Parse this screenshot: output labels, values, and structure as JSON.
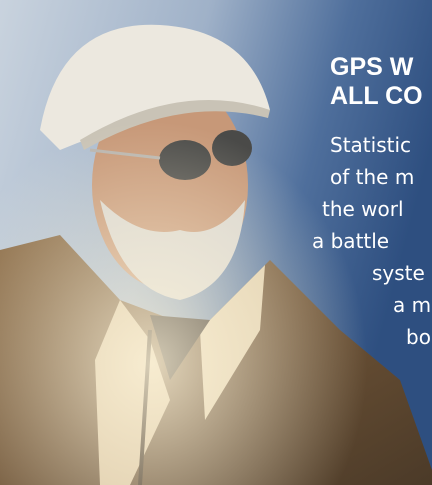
{
  "headline": {
    "lines": [
      "GPS W",
      "ALL CO"
    ]
  },
  "body": {
    "lines": [
      "Statistic",
      "of the m",
      "the worl",
      "a battle",
      "syste",
      "a m",
      "bo"
    ]
  }
}
